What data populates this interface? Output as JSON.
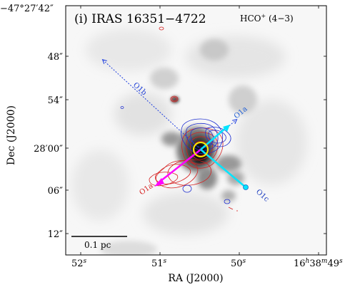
{
  "chart_data": {
    "type": "image",
    "panel_label": "(i) IRAS 16351−4722",
    "tracer": "HCO",
    "tracer_sup": "+",
    "tracer_trans": " (4−3)",
    "xlabel": "RA (J2000)",
    "ylabel": "Dec (J2000)",
    "dec_top_label": "−47°27′42″",
    "x_ticks": [
      {
        "label": "52",
        "unit": "s"
      },
      {
        "label": "51",
        "unit": "s"
      },
      {
        "label": "50",
        "unit": "s"
      },
      {
        "label": "16h38m49s",
        "ra_full": true
      }
    ],
    "ra_full_parts": [
      "16",
      "h",
      "38",
      "m",
      "49",
      "s"
    ],
    "y_ticks": [
      "48″",
      "54″",
      "28′00″",
      "06″",
      "12″"
    ],
    "scalebar_label": "0.1 pc",
    "outflows": [
      {
        "name": "O1a",
        "label": "O1a",
        "lobe": "blue",
        "color": "#1f5fd6",
        "style": "dashed"
      },
      {
        "name": "O1b",
        "label": "O1b",
        "lobe": "blue",
        "color": "#1f3fd6",
        "style": "dashed"
      },
      {
        "name": "O1a-red",
        "label": "O1a",
        "lobe": "red",
        "color": "#d62020",
        "style": "solid"
      },
      {
        "name": "O1c",
        "label": "O1c",
        "lobe": "blue",
        "color": "#2040c0",
        "style": "solid"
      }
    ],
    "arrow_colors": {
      "magenta": "#ff00ff",
      "cyan": "#00e5ff",
      "blue": "#1f3fe0",
      "marker": "#ffee00"
    }
  }
}
